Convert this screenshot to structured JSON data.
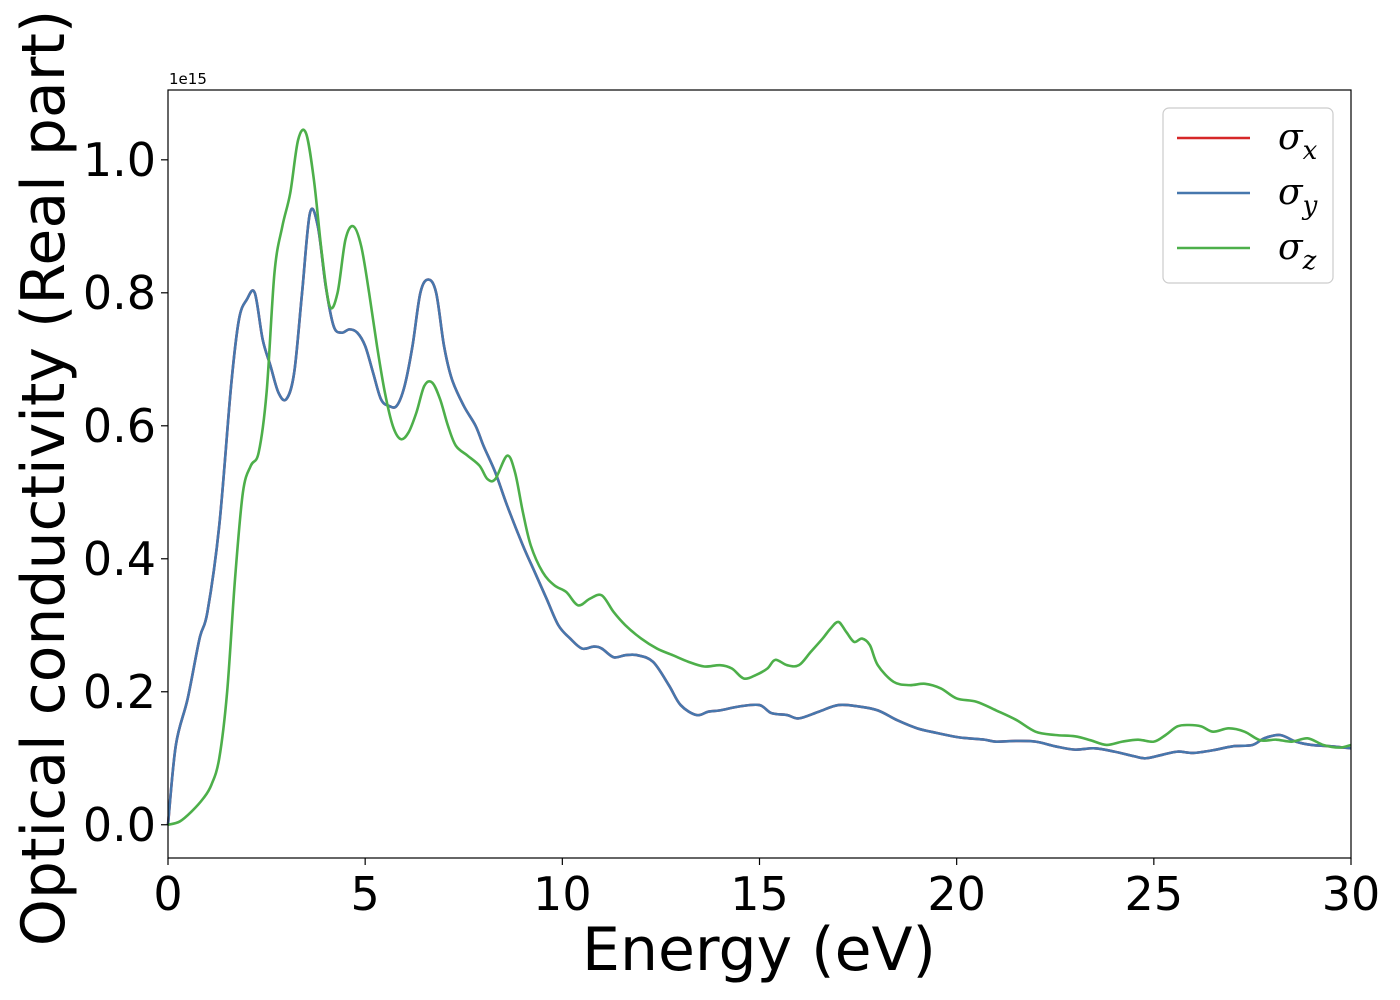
{
  "chart_data": {
    "type": "line",
    "title": "",
    "xlabel": "Energy (eV)",
    "ylabel": "Optical conductivity (Real part)",
    "y_offset_label": "1e15",
    "y_scale": 1000000000000000.0,
    "xlim": [
      0,
      30
    ],
    "ylim": [
      -0.05,
      1.105
    ],
    "x_ticks": [
      0,
      5,
      10,
      15,
      20,
      25,
      30
    ],
    "x_tick_labels": [
      "0",
      "5",
      "10",
      "15",
      "20",
      "25",
      "30"
    ],
    "y_ticks": [
      0.0,
      0.2,
      0.4,
      0.6,
      0.8,
      1.0
    ],
    "y_tick_labels": [
      "0.0",
      "0.2",
      "0.4",
      "0.6",
      "0.8",
      "1.0"
    ],
    "grid": false,
    "legend_position": "top-right",
    "series": [
      {
        "name": "σ",
        "sub": "x",
        "color": "#d62728",
        "x": [
          0,
          0.2,
          0.5,
          0.8,
          1.0,
          1.3,
          1.6,
          1.8,
          2.0,
          2.2,
          2.4,
          2.6,
          2.8,
          3.0,
          3.2,
          3.4,
          3.6,
          3.8,
          4.0,
          4.2,
          4.4,
          4.6,
          4.8,
          5.0,
          5.2,
          5.4,
          5.6,
          5.8,
          6.0,
          6.2,
          6.4,
          6.6,
          6.8,
          7.0,
          7.2,
          7.5,
          7.8,
          8.0,
          8.3,
          8.6,
          9.0,
          9.3,
          9.6,
          9.9,
          10.2,
          10.5,
          10.8,
          11.0,
          11.3,
          11.6,
          11.9,
          12.3,
          12.7,
          13.0,
          13.4,
          13.7,
          14.0,
          14.5,
          15.0,
          15.3,
          15.7,
          16.0,
          16.5,
          17.0,
          17.5,
          18.0,
          18.5,
          19.0,
          19.5,
          20.0,
          20.3,
          20.7,
          21.0,
          21.5,
          22.0,
          22.5,
          23.0,
          23.5,
          24.0,
          24.5,
          24.8,
          25.2,
          25.6,
          26.0,
          26.5,
          27.0,
          27.5,
          27.8,
          28.2,
          28.6,
          29.0,
          29.5,
          30.0
        ],
        "values": [
          0.0,
          0.12,
          0.19,
          0.28,
          0.32,
          0.45,
          0.66,
          0.76,
          0.79,
          0.8,
          0.73,
          0.69,
          0.65,
          0.64,
          0.68,
          0.8,
          0.92,
          0.9,
          0.81,
          0.75,
          0.74,
          0.745,
          0.74,
          0.72,
          0.68,
          0.64,
          0.63,
          0.63,
          0.66,
          0.72,
          0.8,
          0.82,
          0.8,
          0.72,
          0.67,
          0.63,
          0.6,
          0.57,
          0.53,
          0.48,
          0.42,
          0.38,
          0.34,
          0.3,
          0.28,
          0.265,
          0.268,
          0.265,
          0.252,
          0.255,
          0.255,
          0.245,
          0.21,
          0.18,
          0.165,
          0.17,
          0.172,
          0.178,
          0.18,
          0.168,
          0.165,
          0.16,
          0.17,
          0.18,
          0.178,
          0.172,
          0.157,
          0.145,
          0.138,
          0.132,
          0.13,
          0.128,
          0.125,
          0.126,
          0.125,
          0.118,
          0.113,
          0.115,
          0.11,
          0.103,
          0.1,
          0.105,
          0.11,
          0.108,
          0.112,
          0.118,
          0.12,
          0.13,
          0.135,
          0.125,
          0.12,
          0.118,
          0.115
        ]
      },
      {
        "name": "σ",
        "sub": "y",
        "color": "#4677ad",
        "x": [
          0,
          0.2,
          0.5,
          0.8,
          1.0,
          1.3,
          1.6,
          1.8,
          2.0,
          2.2,
          2.4,
          2.6,
          2.8,
          3.0,
          3.2,
          3.4,
          3.6,
          3.8,
          4.0,
          4.2,
          4.4,
          4.6,
          4.8,
          5.0,
          5.2,
          5.4,
          5.6,
          5.8,
          6.0,
          6.2,
          6.4,
          6.6,
          6.8,
          7.0,
          7.2,
          7.5,
          7.8,
          8.0,
          8.3,
          8.6,
          9.0,
          9.3,
          9.6,
          9.9,
          10.2,
          10.5,
          10.8,
          11.0,
          11.3,
          11.6,
          11.9,
          12.3,
          12.7,
          13.0,
          13.4,
          13.7,
          14.0,
          14.5,
          15.0,
          15.3,
          15.7,
          16.0,
          16.5,
          17.0,
          17.5,
          18.0,
          18.5,
          19.0,
          19.5,
          20.0,
          20.3,
          20.7,
          21.0,
          21.5,
          22.0,
          22.5,
          23.0,
          23.5,
          24.0,
          24.5,
          24.8,
          25.2,
          25.6,
          26.0,
          26.5,
          27.0,
          27.5,
          27.8,
          28.2,
          28.6,
          29.0,
          29.5,
          30.0
        ],
        "values": [
          0.0,
          0.12,
          0.19,
          0.28,
          0.32,
          0.45,
          0.66,
          0.76,
          0.79,
          0.8,
          0.73,
          0.69,
          0.65,
          0.64,
          0.68,
          0.8,
          0.92,
          0.9,
          0.81,
          0.75,
          0.74,
          0.745,
          0.74,
          0.72,
          0.68,
          0.64,
          0.63,
          0.63,
          0.66,
          0.72,
          0.8,
          0.82,
          0.8,
          0.72,
          0.67,
          0.63,
          0.6,
          0.57,
          0.53,
          0.48,
          0.42,
          0.38,
          0.34,
          0.3,
          0.28,
          0.265,
          0.268,
          0.265,
          0.252,
          0.255,
          0.255,
          0.245,
          0.21,
          0.18,
          0.165,
          0.17,
          0.172,
          0.178,
          0.18,
          0.168,
          0.165,
          0.16,
          0.17,
          0.18,
          0.178,
          0.172,
          0.157,
          0.145,
          0.138,
          0.132,
          0.13,
          0.128,
          0.125,
          0.126,
          0.125,
          0.118,
          0.113,
          0.115,
          0.11,
          0.103,
          0.1,
          0.105,
          0.11,
          0.108,
          0.112,
          0.118,
          0.12,
          0.13,
          0.135,
          0.125,
          0.12,
          0.118,
          0.115
        ]
      },
      {
        "name": "σ",
        "sub": "z",
        "color": "#4daf4a",
        "x": [
          0,
          0.3,
          0.6,
          0.9,
          1.1,
          1.3,
          1.5,
          1.7,
          1.9,
          2.1,
          2.3,
          2.5,
          2.7,
          2.9,
          3.1,
          3.3,
          3.5,
          3.7,
          3.9,
          4.1,
          4.3,
          4.5,
          4.7,
          4.9,
          5.1,
          5.3,
          5.5,
          5.7,
          5.9,
          6.1,
          6.3,
          6.5,
          6.7,
          6.9,
          7.1,
          7.3,
          7.6,
          7.9,
          8.1,
          8.3,
          8.6,
          8.8,
          9.0,
          9.2,
          9.5,
          9.8,
          10.1,
          10.4,
          10.7,
          11.0,
          11.3,
          11.6,
          12.0,
          12.4,
          12.8,
          13.2,
          13.6,
          14.0,
          14.3,
          14.6,
          14.9,
          15.2,
          15.4,
          15.7,
          16.0,
          16.3,
          16.6,
          16.8,
          17.0,
          17.2,
          17.4,
          17.6,
          17.8,
          18.0,
          18.4,
          18.8,
          19.2,
          19.6,
          20.0,
          20.5,
          21.0,
          21.5,
          22.0,
          22.5,
          23.0,
          23.4,
          23.8,
          24.2,
          24.6,
          25.0,
          25.3,
          25.6,
          25.9,
          26.2,
          26.5,
          26.9,
          27.3,
          27.7,
          28.1,
          28.5,
          28.9,
          29.3,
          29.7,
          30.0
        ],
        "values": [
          0.0,
          0.005,
          0.02,
          0.04,
          0.06,
          0.1,
          0.2,
          0.37,
          0.5,
          0.54,
          0.56,
          0.65,
          0.83,
          0.9,
          0.95,
          1.03,
          1.04,
          0.97,
          0.86,
          0.78,
          0.8,
          0.88,
          0.9,
          0.87,
          0.8,
          0.72,
          0.65,
          0.6,
          0.58,
          0.59,
          0.62,
          0.66,
          0.665,
          0.64,
          0.6,
          0.57,
          0.555,
          0.54,
          0.52,
          0.52,
          0.555,
          0.53,
          0.47,
          0.42,
          0.38,
          0.36,
          0.35,
          0.33,
          0.34,
          0.345,
          0.32,
          0.3,
          0.28,
          0.265,
          0.255,
          0.245,
          0.238,
          0.24,
          0.235,
          0.22,
          0.225,
          0.235,
          0.248,
          0.24,
          0.24,
          0.26,
          0.28,
          0.295,
          0.305,
          0.29,
          0.275,
          0.28,
          0.27,
          0.24,
          0.215,
          0.21,
          0.212,
          0.205,
          0.19,
          0.185,
          0.172,
          0.158,
          0.14,
          0.135,
          0.133,
          0.127,
          0.12,
          0.125,
          0.128,
          0.125,
          0.135,
          0.148,
          0.15,
          0.148,
          0.14,
          0.145,
          0.14,
          0.127,
          0.128,
          0.125,
          0.13,
          0.12,
          0.116,
          0.12
        ]
      }
    ]
  }
}
